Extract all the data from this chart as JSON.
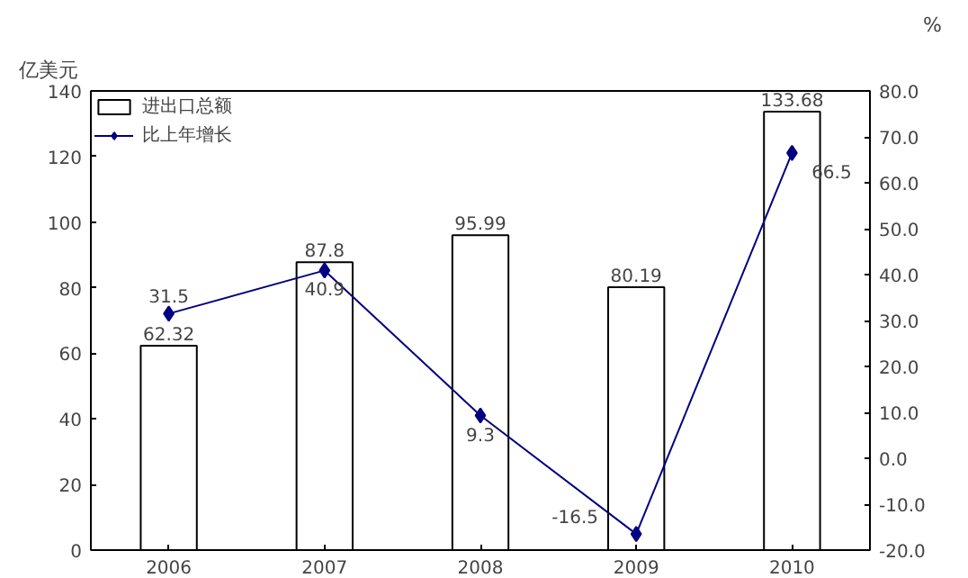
{
  "chart_data": {
    "type": "bar",
    "categories": [
      "2006",
      "2007",
      "2008",
      "2009",
      "2010"
    ],
    "ylabel": "亿美元",
    "y2label": "%",
    "ylim": [
      0,
      140
    ],
    "yticks": [
      0,
      20,
      40,
      60,
      80,
      100,
      120,
      140
    ],
    "y2lim": [
      -20,
      80
    ],
    "y2ticks": [
      {
        "value": -20,
        "label": "-20.0"
      },
      {
        "value": -10,
        "label": "-10.0"
      },
      {
        "value": 0,
        "label": "0.0"
      },
      {
        "value": 10,
        "label": "10.0"
      },
      {
        "value": 20,
        "label": "20.0"
      },
      {
        "value": 30,
        "label": "30.0"
      },
      {
        "value": 40,
        "label": "40.0"
      },
      {
        "value": 50,
        "label": "50.0"
      },
      {
        "value": 60,
        "label": "60.0"
      },
      {
        "value": 70,
        "label": "70.0"
      },
      {
        "value": 80,
        "label": "80.0"
      }
    ],
    "series": [
      {
        "name": "进出口总额",
        "color": "#ffffff",
        "values": [
          62.32,
          87.8,
          95.99,
          80.19,
          133.68
        ]
      },
      {
        "name": "比上年增长",
        "type": "line",
        "axis": "y2",
        "color": "#000080",
        "marker": "diamond",
        "values": [
          31.5,
          40.9,
          9.3,
          -16.5,
          66.5
        ]
      }
    ],
    "data_labels": true,
    "legend": "top left",
    "grid": false
  }
}
